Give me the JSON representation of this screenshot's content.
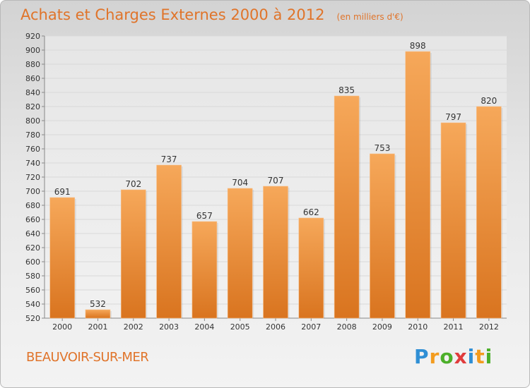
{
  "title": "Achats et Charges Externes 2000 à 2012",
  "unit_label": "(en milliers d'€)",
  "commune": "BEAUVOIR-SUR-MER",
  "logo": {
    "text": "Proxiti",
    "letters": [
      "P",
      "r",
      "o",
      "x",
      "i",
      "t",
      "i"
    ],
    "letter_colors": [
      "#2f8fd5",
      "#f39c1f",
      "#4caf2a",
      "#e03c3c",
      "#2f8fd5",
      "#f39c1f",
      "#4caf2a"
    ]
  },
  "colors": {
    "accent": "#e0742a",
    "bar_top": "#f6a85a",
    "bar_bottom": "#d9741f",
    "grid": "#d9d9d9"
  },
  "chart_data": {
    "type": "bar",
    "categories": [
      "2000",
      "2001",
      "2002",
      "2003",
      "2004",
      "2005",
      "2006",
      "2007",
      "2008",
      "2009",
      "2010",
      "2011",
      "2012"
    ],
    "values": [
      691,
      532,
      702,
      737,
      657,
      704,
      707,
      662,
      835,
      753,
      898,
      797,
      820
    ],
    "ylim": [
      520,
      920
    ],
    "yticks": [
      520,
      540,
      560,
      580,
      600,
      620,
      640,
      660,
      680,
      700,
      720,
      740,
      760,
      780,
      800,
      820,
      840,
      860,
      880,
      900,
      920
    ],
    "grid": true
  }
}
